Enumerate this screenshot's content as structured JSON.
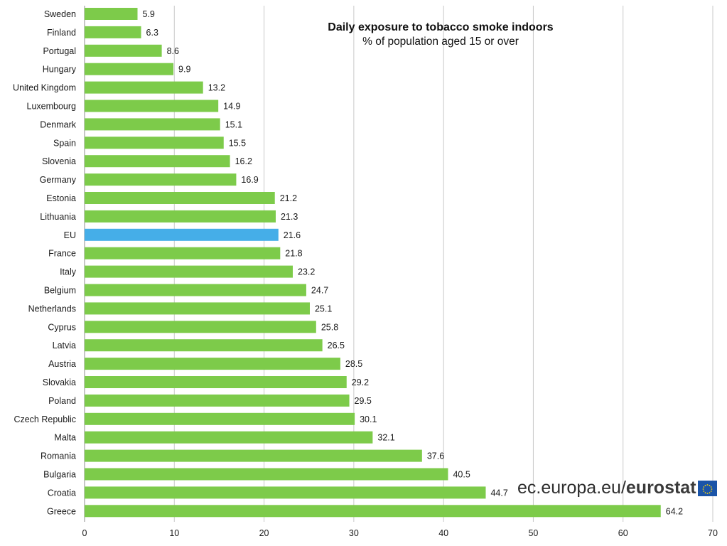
{
  "title": "Daily exposure to tobacco smoke indoors",
  "subtitle": "% of population aged 15 or over",
  "source": {
    "site": "ec.europa.eu/",
    "brand": "eurostat",
    "flag_icon": "eu-flag-icon"
  },
  "colors": {
    "bar": "#7dcb4a",
    "highlight": "#45aee8"
  },
  "chart_data": {
    "type": "bar",
    "orientation": "horizontal",
    "title": "Daily exposure to tobacco smoke indoors",
    "subtitle": "% of population aged 15 or over",
    "xlabel": "",
    "ylabel": "",
    "xlim": [
      0,
      70
    ],
    "xticks": [
      0,
      10,
      20,
      30,
      40,
      50,
      60,
      70
    ],
    "grid": "vertical",
    "legend": "none",
    "highlight": "EU",
    "categories": [
      "Sweden",
      "Finland",
      "Portugal",
      "Hungary",
      "United Kingdom",
      "Luxembourg",
      "Denmark",
      "Spain",
      "Slovenia",
      "Germany",
      "Estonia",
      "Lithuania",
      "EU",
      "France",
      "Italy",
      "Belgium",
      "Netherlands",
      "Cyprus",
      "Latvia",
      "Austria",
      "Slovakia",
      "Poland",
      "Czech Republic",
      "Malta",
      "Romania",
      "Bulgaria",
      "Croatia",
      "Greece"
    ],
    "values": [
      5.9,
      6.3,
      8.6,
      9.9,
      13.2,
      14.9,
      15.1,
      15.5,
      16.2,
      16.9,
      21.2,
      21.3,
      21.6,
      21.8,
      23.2,
      24.7,
      25.1,
      25.8,
      26.5,
      28.5,
      29.2,
      29.5,
      30.1,
      32.1,
      37.6,
      40.5,
      44.7,
      64.2
    ]
  }
}
